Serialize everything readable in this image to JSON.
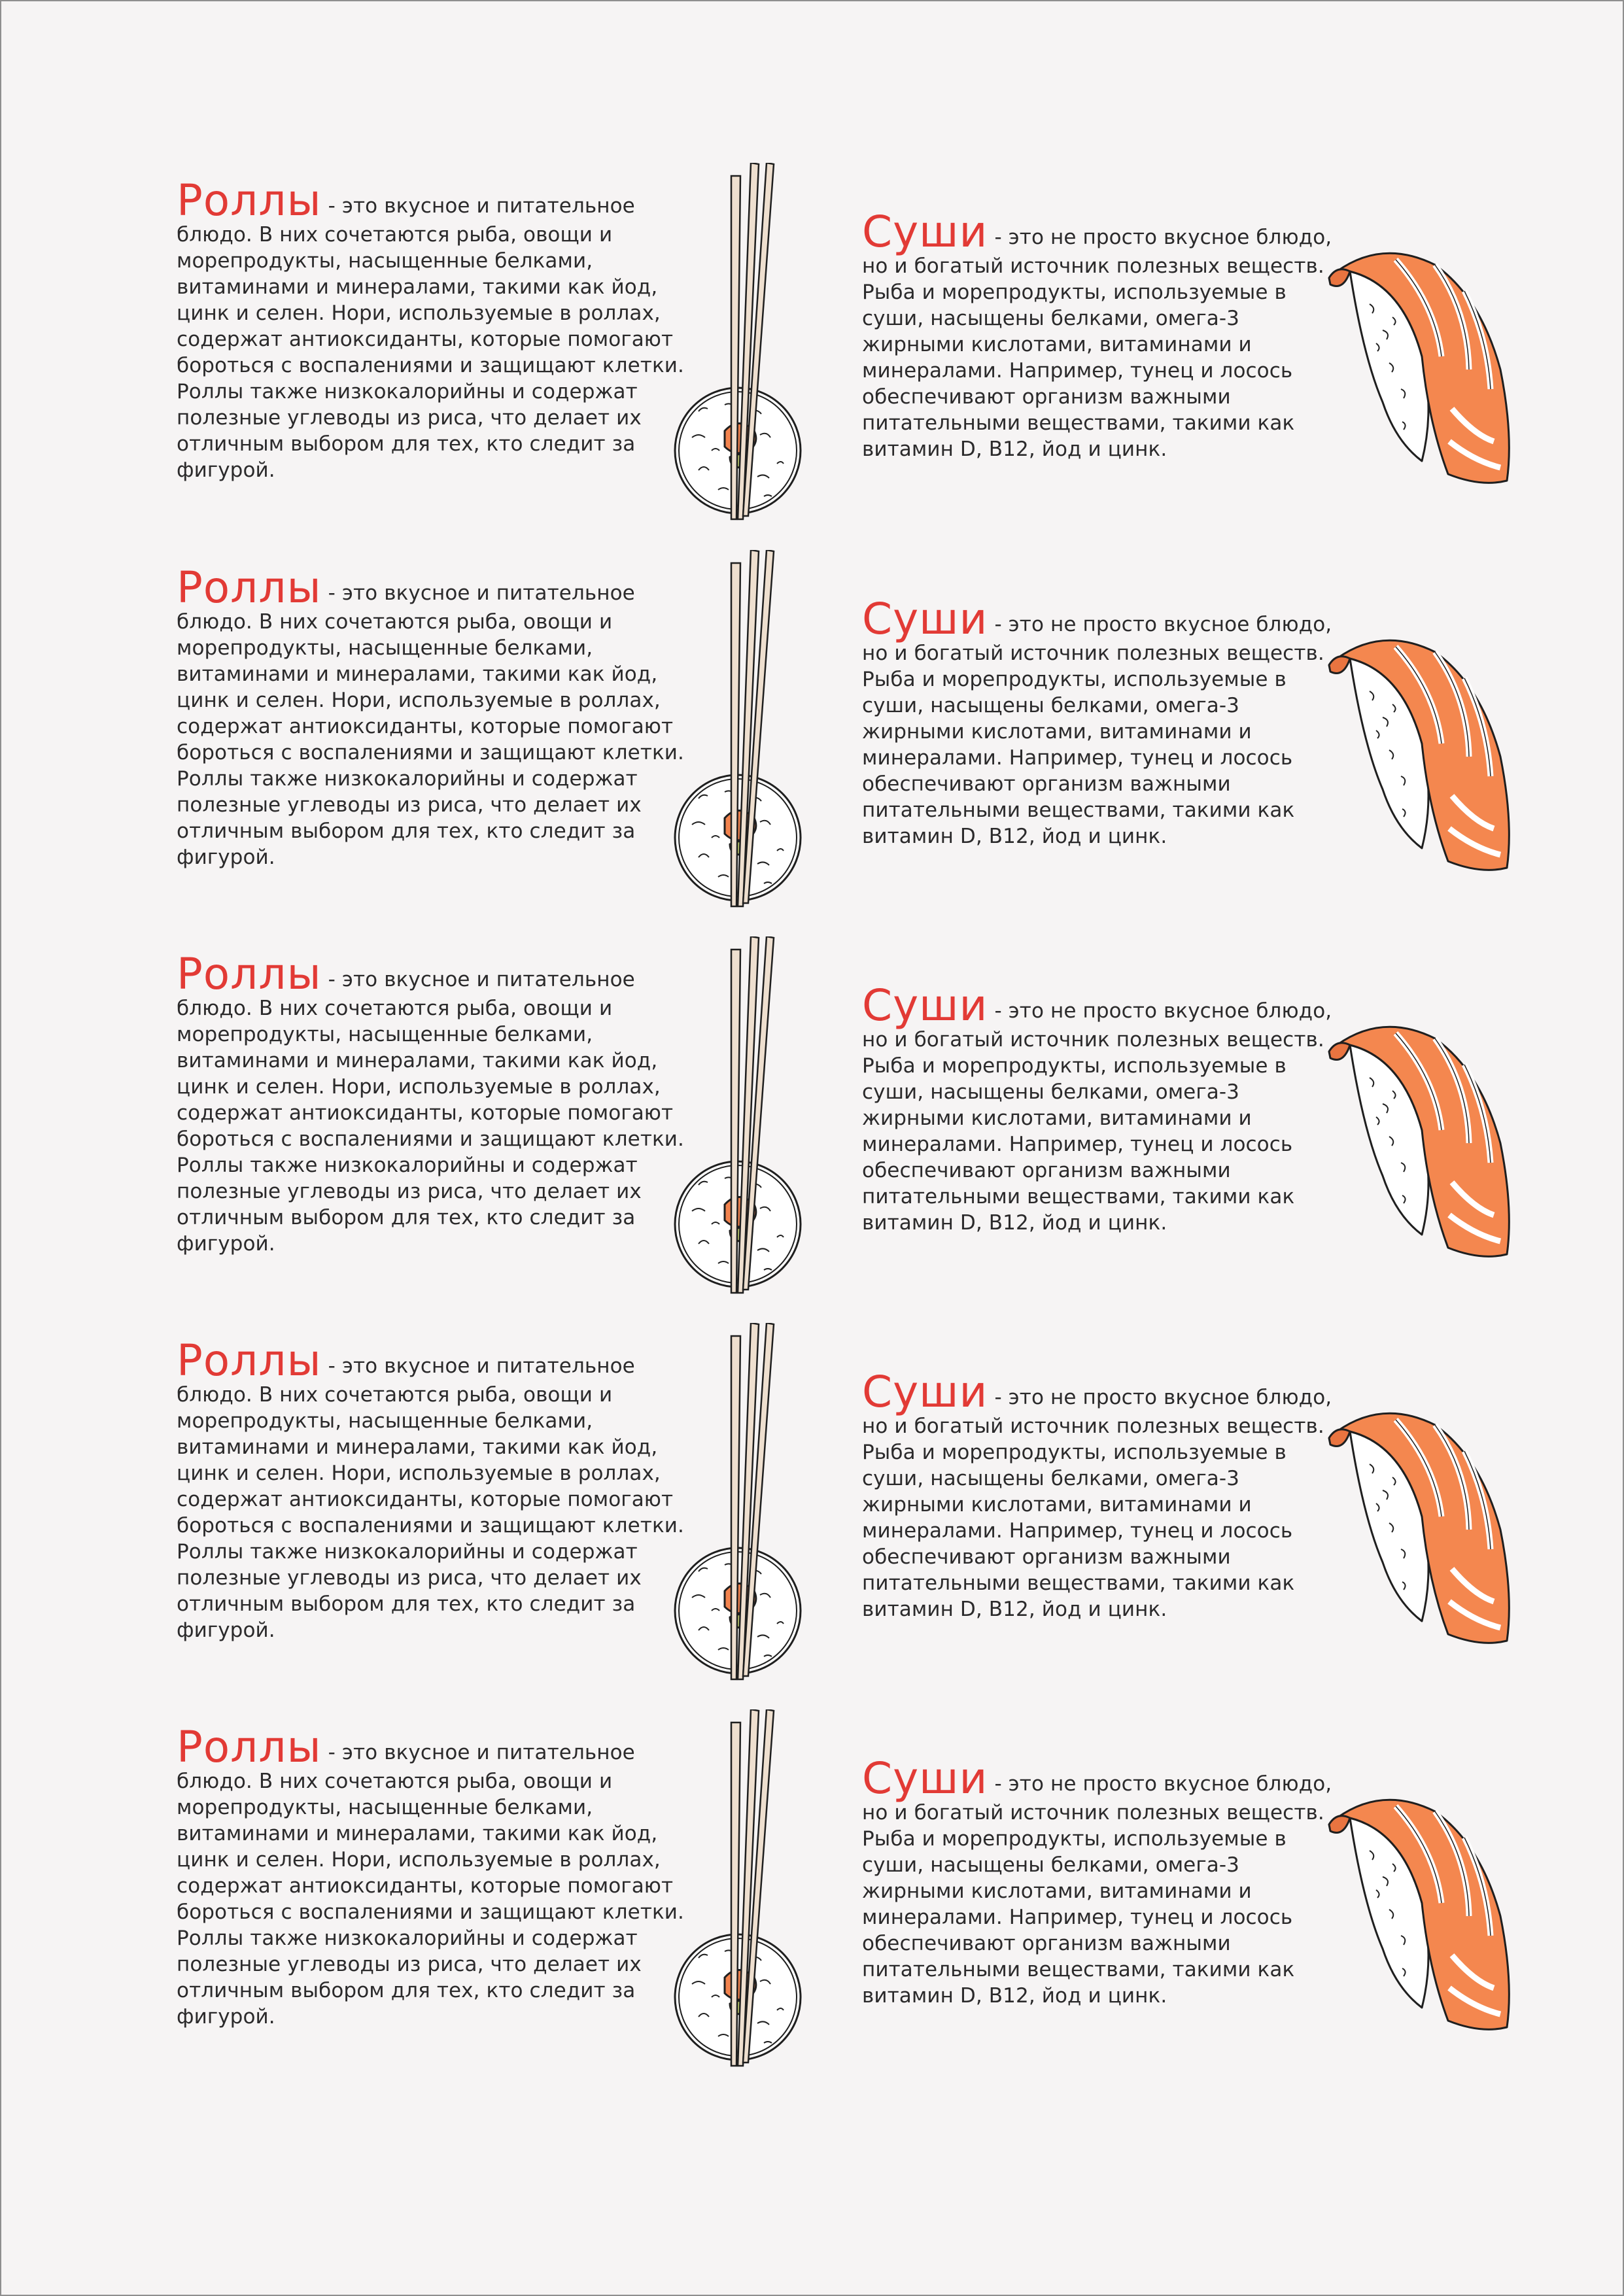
{
  "colors": {
    "title": "#e23a35",
    "text": "#2b2a2b",
    "background": "#f6f4f4",
    "salmon": "#f4874f"
  },
  "rows": [
    {
      "rolls": {
        "title": "Роллы",
        "lines": [
          "- это вкусное и питательное",
          "блюдо. В них сочетаются рыба, овощи и",
          "морепродукты, насыщенные белками,",
          "витаминами и минералами, такими как йод,",
          "цинк и селен. Нори, используемые в роллах,",
          "содержат антиоксиданты, которые помогают",
          "бороться с воспалениями и защищают клетки.",
          "Роллы также низкокалорийны и содержат",
          "полезные углеводы из риса, что делает их",
          "отличным выбором для тех, кто следит за",
          "фигурой."
        ]
      },
      "sushi": {
        "title": "Суши",
        "lines": [
          "- это не просто вкусное блюдо,",
          "но и богатый источник полезных веществ.",
          "Рыба и морепродукты, используемые в",
          "суши, насыщены белками, омега-3",
          "жирными кислотами, витаминами и",
          "минералами. Например, тунец и лосось",
          "обеспечивают организм важными",
          "питательными веществами, такими как",
          "витамин D, B12, йод и цинк."
        ]
      }
    },
    {
      "rolls": {
        "title": "Роллы",
        "lines": [
          "- это вкусное и питательное",
          "блюдо. В них сочетаются рыба, овощи и",
          "морепродукты, насыщенные белками,",
          "витаминами и минералами, такими как йод,",
          "цинк и селен. Нори, используемые в роллах,",
          "содержат антиоксиданты, которые помогают",
          "бороться с воспалениями и защищают клетки.",
          "Роллы также низкокалорийны и содержат",
          "полезные углеводы из риса, что делает их",
          "отличным выбором для тех, кто следит за",
          "фигурой."
        ]
      },
      "sushi": {
        "title": "Суши",
        "lines": [
          "- это не просто вкусное блюдо,",
          "но и богатый источник полезных веществ.",
          "Рыба и морепродукты, используемые в",
          "суши, насыщены белками, омега-3",
          "жирными кислотами, витаминами и",
          "минералами. Например, тунец и лосось",
          "обеспечивают организм важными",
          "питательными веществами, такими как",
          "витамин D, B12, йод и цинк."
        ]
      }
    },
    {
      "rolls": {
        "title": "Роллы",
        "lines": [
          "- это вкусное и питательное",
          "блюдо. В них сочетаются рыба, овощи и",
          "морепродукты, насыщенные белками,",
          "витаминами и минералами, такими как йод,",
          "цинк и селен. Нори, используемые в роллах,",
          "содержат антиоксиданты, которые помогают",
          "бороться с воспалениями и защищают клетки.",
          "Роллы также низкокалорийны и содержат",
          "полезные углеводы из риса, что делает их",
          "отличным выбором для тех, кто следит за",
          "фигурой."
        ]
      },
      "sushi": {
        "title": "Суши",
        "lines": [
          "- это не просто вкусное блюдо,",
          "но и богатый источник полезных веществ.",
          "Рыба и морепродукты, используемые в",
          "суши, насыщены белками, омега-3",
          "жирными кислотами, витаминами и",
          "минералами. Например, тунец и лосось",
          "обеспечивают организм важными",
          "питательными веществами, такими как",
          "витамин D, B12, йод и цинк."
        ]
      }
    },
    {
      "rolls": {
        "title": "Роллы",
        "lines": [
          "- это вкусное и питательное",
          "блюдо. В них сочетаются рыба, овощи и",
          "морепродукты, насыщенные белками,",
          "витаминами и минералами, такими как йод,",
          "цинк и селен. Нори, используемые в роллах,",
          "содержат антиоксиданты, которые помогают",
          "бороться с воспалениями и защищают клетки.",
          "Роллы также низкокалорийны и содержат",
          "полезные углеводы из риса, что делает их",
          "отличным выбором для тех, кто следит за",
          "фигурой."
        ]
      },
      "sushi": {
        "title": "Суши",
        "lines": [
          "- это не просто вкусное блюдо,",
          "но и богатый источник полезных веществ.",
          "Рыба и морепродукты, используемые в",
          "суши, насыщены белками, омега-3",
          "жирными кислотами, витаминами и",
          "минералами. Например, тунец и лосось",
          "обеспечивают организм важными",
          "питательными веществами, такими как",
          "витамин D, B12, йод и цинк."
        ]
      }
    },
    {
      "rolls": {
        "title": "Роллы",
        "lines": [
          "- это вкусное и питательное",
          "блюдо. В них сочетаются рыба, овощи и",
          "морепродукты, насыщенные белками,",
          "витаминами и минералами, такими как йод,",
          "цинк и селен. Нори, используемые в роллах,",
          "содержат антиоксиданты, которые помогают",
          "бороться с воспалениями и защищают клетки.",
          "Роллы также низкокалорийны и содержат",
          "полезные углеводы из риса, что делает их",
          "отличным выбором для тех, кто следит за",
          "фигурой."
        ]
      },
      "sushi": {
        "title": "Суши",
        "lines": [
          "- это не просто вкусное блюдо,",
          "но и богатый источник полезных веществ.",
          "Рыба и морепродукты, используемые в",
          "суши, насыщены белками, омега-3",
          "жирными кислотами, витаминами и",
          "минералами. Например, тунец и лосось",
          "обеспечивают организм важными",
          "питательными веществами, такими как",
          "витамин D, B12, йод и цинк."
        ]
      }
    }
  ]
}
